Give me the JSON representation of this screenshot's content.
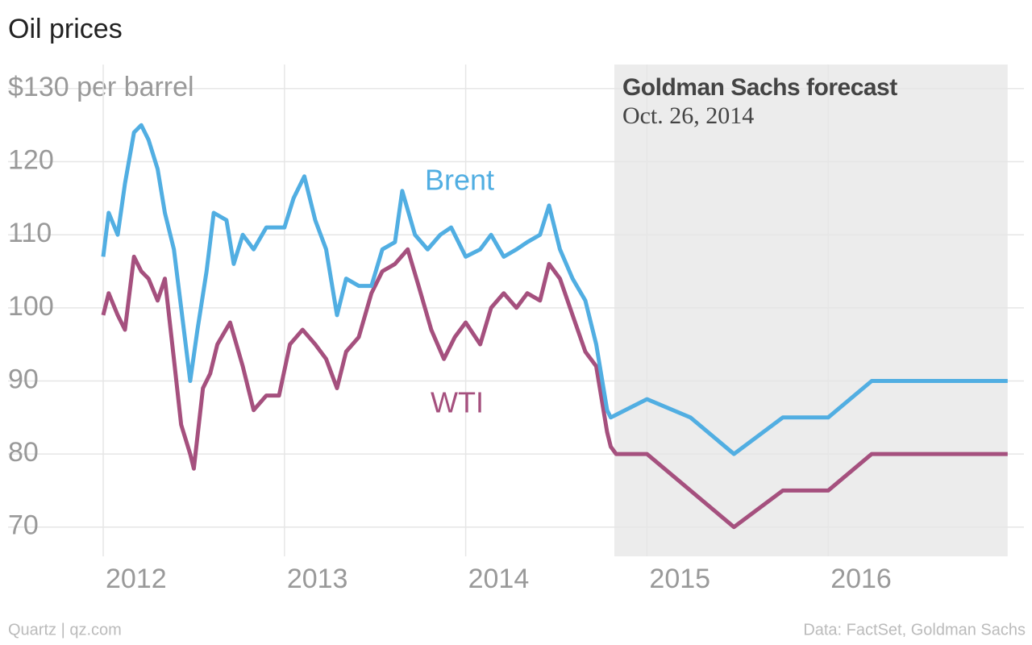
{
  "chart_data": {
    "type": "line",
    "title": "Oil prices",
    "source_left": "Quartz | qz.com",
    "source_right": "Data: FactSet, Goldman Sachs",
    "forecast": {
      "title": "Goldman Sachs forecast",
      "date": "Oct. 26, 2014",
      "x_range": [
        2014.82,
        2016.99
      ]
    },
    "xlim": [
      2011.475,
      2017.08
    ],
    "xticks": [
      2012,
      2013,
      2014,
      2015,
      2016
    ],
    "ylim": [
      66,
      133.3
    ],
    "yticks": [
      70,
      80,
      90,
      100,
      110,
      120,
      {
        "value": 130,
        "label": "$130 per barrel"
      }
    ],
    "grid": true,
    "series": [
      {
        "name": "Brent",
        "color": "#51aee2",
        "x": [
          2012.0,
          2012.03,
          2012.08,
          2012.12,
          2012.17,
          2012.21,
          2012.25,
          2012.3,
          2012.34,
          2012.39,
          2012.43,
          2012.48,
          2012.52,
          2012.57,
          2012.61,
          2012.68,
          2012.72,
          2012.77,
          2012.83,
          2012.9,
          2013.0,
          2013.05,
          2013.11,
          2013.17,
          2013.23,
          2013.29,
          2013.34,
          2013.41,
          2013.48,
          2013.54,
          2013.61,
          2013.65,
          2013.72,
          2013.79,
          2013.86,
          2013.92,
          2014.0,
          2014.08,
          2014.14,
          2014.21,
          2014.28,
          2014.34,
          2014.41,
          2014.46,
          2014.52,
          2014.59,
          2014.66,
          2014.72,
          2014.78,
          2014.8,
          2015.0,
          2015.24,
          2015.48,
          2015.75,
          2016.0,
          2016.24,
          2016.99
        ],
        "values": [
          107,
          113,
          110,
          117,
          124,
          125,
          123,
          119,
          113,
          108,
          100,
          90,
          97,
          105,
          113,
          112,
          106,
          110,
          108,
          111,
          111,
          115,
          118,
          112,
          108,
          99,
          104,
          103,
          103,
          108,
          109,
          116,
          110,
          108,
          110,
          111,
          107,
          108,
          110,
          107,
          108,
          109,
          110,
          114,
          108,
          104,
          101,
          95,
          86,
          85,
          87.5,
          85,
          80,
          85,
          85,
          90,
          90
        ]
      },
      {
        "name": "WTI",
        "color": "#a5507e",
        "x": [
          2012.0,
          2012.03,
          2012.08,
          2012.12,
          2012.17,
          2012.21,
          2012.25,
          2012.3,
          2012.34,
          2012.39,
          2012.43,
          2012.48,
          2012.5,
          2012.55,
          2012.59,
          2012.63,
          2012.7,
          2012.77,
          2012.83,
          2012.9,
          2012.97,
          2013.03,
          2013.1,
          2013.17,
          2013.23,
          2013.29,
          2013.34,
          2013.41,
          2013.48,
          2013.54,
          2013.61,
          2013.68,
          2013.74,
          2013.81,
          2013.88,
          2013.94,
          2014.0,
          2014.08,
          2014.14,
          2014.21,
          2014.28,
          2014.34,
          2014.41,
          2014.46,
          2014.52,
          2014.59,
          2014.66,
          2014.72,
          2014.78,
          2014.8,
          2014.83,
          2015.0,
          2015.48,
          2015.75,
          2016.0,
          2016.24,
          2016.99
        ],
        "values": [
          99,
          102,
          99,
          97,
          107,
          105,
          104,
          101,
          104,
          93,
          84,
          80,
          78,
          89,
          91,
          95,
          98,
          92,
          86,
          88,
          88,
          95,
          97,
          95,
          93,
          89,
          94,
          96,
          102,
          105,
          106,
          108,
          103,
          97,
          93,
          96,
          98,
          95,
          100,
          102,
          100,
          102,
          101,
          106,
          104,
          99,
          94,
          92,
          83,
          81,
          80,
          80,
          70,
          75,
          75,
          80,
          80
        ]
      }
    ]
  }
}
